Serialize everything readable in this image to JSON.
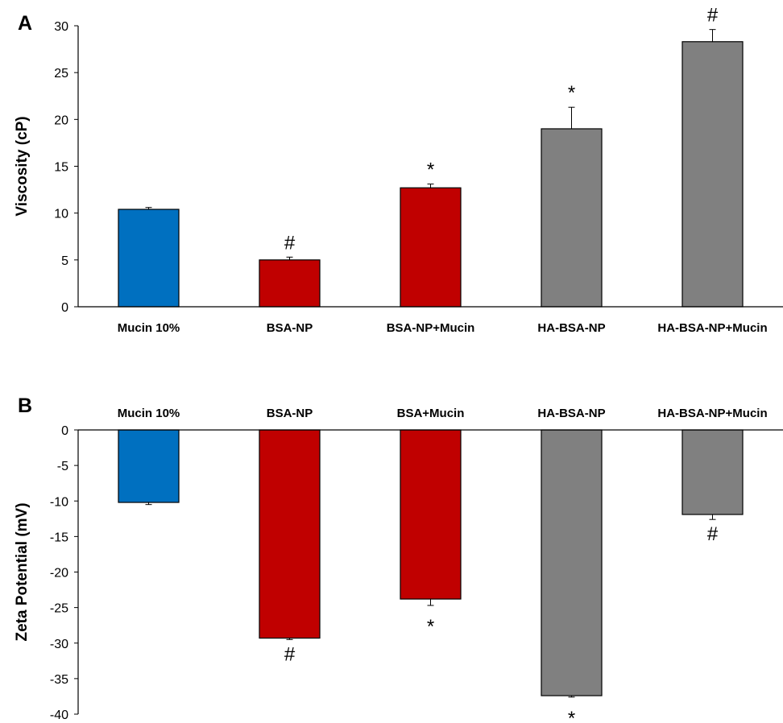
{
  "chart_data": [
    {
      "type": "bar",
      "panel": "A",
      "ylabel": "Viscosity  (cP)",
      "xlabel": "",
      "ylim": [
        0,
        30
      ],
      "yticks": [
        0,
        5,
        10,
        15,
        20,
        25,
        30
      ],
      "categories": [
        "Mucin 10%",
        "BSA-NP",
        "BSA-NP+Mucin",
        "HA-BSA-NP",
        "HA-BSA-NP+Mucin"
      ],
      "values": [
        10.4,
        5.0,
        12.7,
        19.0,
        28.3
      ],
      "errors": [
        0.2,
        0.3,
        0.4,
        2.3,
        1.3
      ],
      "annotations": [
        "",
        "#",
        "*",
        "*",
        "#"
      ],
      "colors": [
        "#0070C0",
        "#C00000",
        "#C00000",
        "#808080",
        "#808080"
      ],
      "grid": false
    },
    {
      "type": "bar",
      "panel": "B",
      "ylabel": "Zeta Potential (mV)",
      "xlabel": "",
      "ylim": [
        -40,
        0
      ],
      "yticks": [
        0,
        -5,
        -10,
        -15,
        -20,
        -25,
        -30,
        -35,
        -40
      ],
      "categories": [
        "Mucin 10%",
        "BSA-NP",
        "BSA+Mucin",
        "HA-BSA-NP",
        "HA-BSA-NP+Mucin"
      ],
      "values": [
        -10.2,
        -29.3,
        -23.8,
        -37.4,
        -11.9
      ],
      "errors": [
        0.3,
        0.2,
        0.9,
        0.2,
        0.7
      ],
      "annotations": [
        "",
        "#",
        "*",
        "*",
        "#"
      ],
      "colors": [
        "#0070C0",
        "#C00000",
        "#C00000",
        "#808080",
        "#808080"
      ],
      "grid": false
    }
  ]
}
